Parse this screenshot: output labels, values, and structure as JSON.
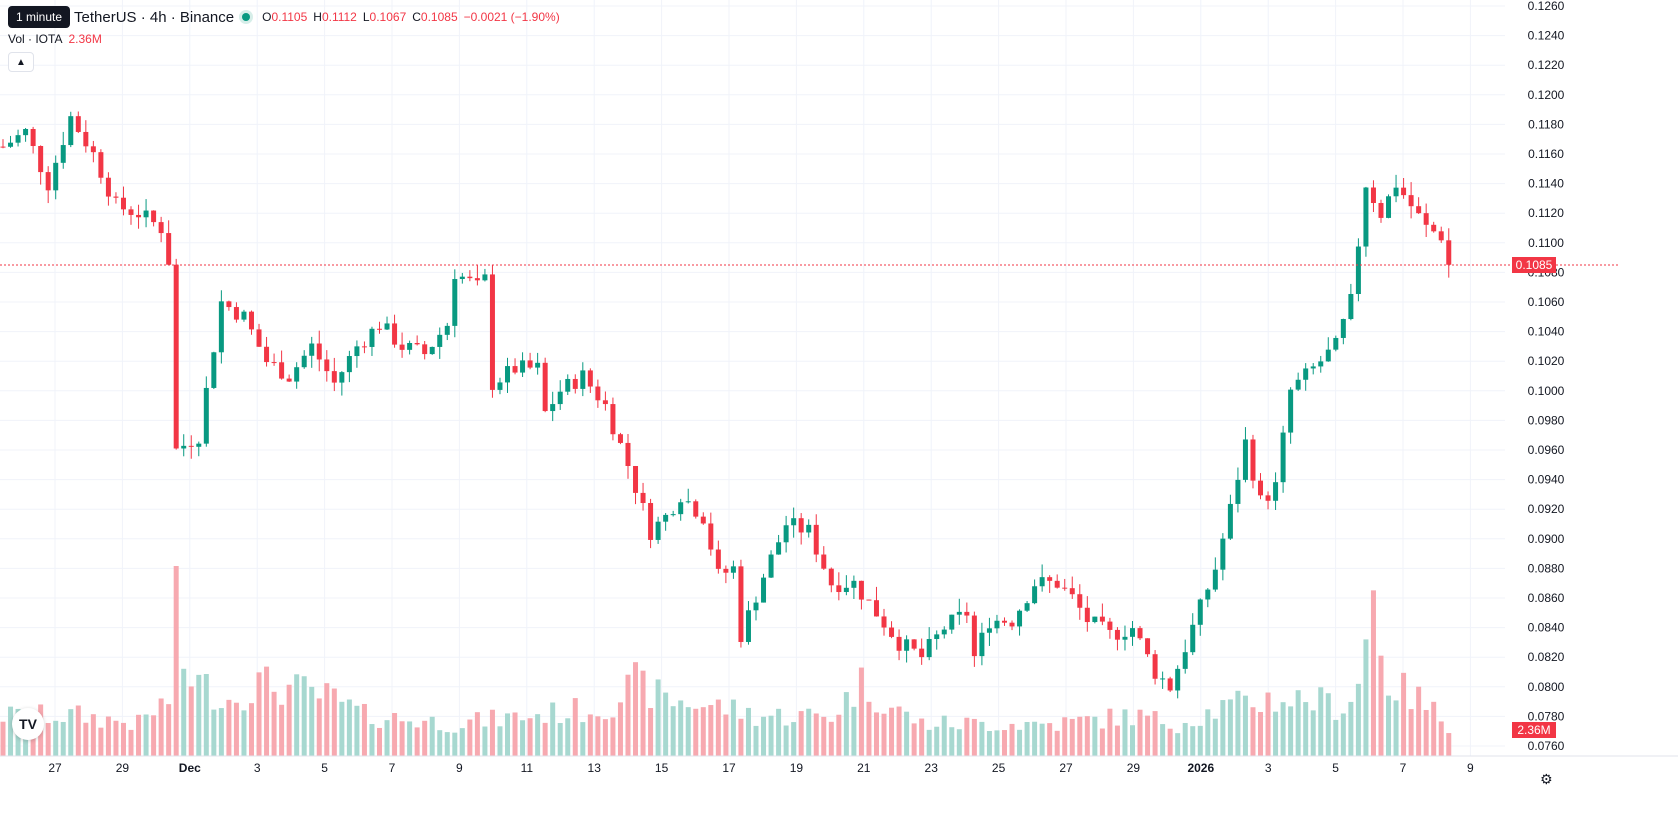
{
  "header": {
    "interval_tooltip": "1 minute",
    "symbol": "TetherUS · 4h · Binance",
    "ohlc": [
      {
        "k": "O",
        "v": "0.1105"
      },
      {
        "k": "H",
        "v": "0.1112"
      },
      {
        "k": "L",
        "v": "0.1067"
      },
      {
        "k": "C",
        "v": "0.1085"
      }
    ],
    "change": "−0.0021 (−1.90%)"
  },
  "volume_legend": {
    "label": "Vol · IOTA",
    "value": "2.36M"
  },
  "current_price_label": "0.1085",
  "current_volume_label": "2.36M",
  "colors": {
    "up": "#089981",
    "down": "#f23645",
    "vol_up": "#a7d8d0",
    "vol_down": "#f7a9b0",
    "grid": "#f0f3fa"
  },
  "chart_data": {
    "type": "candlestick",
    "y_ticks": [
      "0.1260",
      "0.1240",
      "0.1220",
      "0.1200",
      "0.1180",
      "0.1160",
      "0.1140",
      "0.1120",
      "0.1100",
      "0.1080",
      "0.1060",
      "0.1040",
      "0.1020",
      "0.1000",
      "0.0980",
      "0.0960",
      "0.0940",
      "0.0920",
      "0.0900",
      "0.0880",
      "0.0860",
      "0.0840",
      "0.0820",
      "0.0800",
      "0.0780",
      "0.0760"
    ],
    "ylim": [
      0.0754,
      0.1266
    ],
    "x_ticks": [
      "27",
      "29",
      "Dec",
      "3",
      "5",
      "7",
      "9",
      "11",
      "13",
      "15",
      "17",
      "19",
      "21",
      "23",
      "25",
      "27",
      "29",
      "2026",
      "3",
      "5",
      "7",
      "9"
    ],
    "close_path": [
      [
        0,
        0.1165
      ],
      [
        3,
        0.1175
      ],
      [
        6,
        0.114
      ],
      [
        9,
        0.1185
      ],
      [
        12,
        0.116
      ],
      [
        15,
        0.1125
      ],
      [
        18,
        0.112
      ],
      [
        21,
        0.111
      ],
      [
        22,
        0.1088
      ],
      [
        23,
        0.096
      ],
      [
        26,
        0.097
      ],
      [
        29,
        0.106
      ],
      [
        32,
        0.105
      ],
      [
        35,
        0.102
      ],
      [
        38,
        0.101
      ],
      [
        41,
        0.103
      ],
      [
        44,
        0.1005
      ],
      [
        47,
        0.103
      ],
      [
        50,
        0.1045
      ],
      [
        53,
        0.103
      ],
      [
        56,
        0.1025
      ],
      [
        59,
        0.1045
      ],
      [
        60,
        0.108
      ],
      [
        63,
        0.107
      ],
      [
        64,
        0.1075
      ],
      [
        65,
        0.1005
      ],
      [
        68,
        0.1015
      ],
      [
        71,
        0.1015
      ],
      [
        72,
        0.0985
      ],
      [
        74,
        0.1
      ],
      [
        77,
        0.101
      ],
      [
        80,
        0.099
      ],
      [
        83,
        0.095
      ],
      [
        86,
        0.0905
      ],
      [
        88,
        0.0915
      ],
      [
        90,
        0.093
      ],
      [
        93,
        0.0915
      ],
      [
        95,
        0.0875
      ],
      [
        97,
        0.088
      ],
      [
        98,
        0.0835
      ],
      [
        101,
        0.0875
      ],
      [
        104,
        0.091
      ],
      [
        107,
        0.0905
      ],
      [
        110,
        0.087
      ],
      [
        113,
        0.087
      ],
      [
        116,
        0.085
      ],
      [
        119,
        0.083
      ],
      [
        122,
        0.082
      ],
      [
        125,
        0.084
      ],
      [
        128,
        0.085
      ],
      [
        129,
        0.082
      ],
      [
        131,
        0.0845
      ],
      [
        134,
        0.0845
      ],
      [
        137,
        0.087
      ],
      [
        140,
        0.087
      ],
      [
        142,
        0.086
      ],
      [
        144,
        0.0845
      ],
      [
        147,
        0.0835
      ],
      [
        150,
        0.084
      ],
      [
        153,
        0.081
      ],
      [
        155,
        0.08
      ],
      [
        158,
        0.084
      ],
      [
        161,
        0.088
      ],
      [
        163,
        0.092
      ],
      [
        165,
        0.0965
      ],
      [
        167,
        0.0925
      ],
      [
        169,
        0.0935
      ],
      [
        171,
        0.1
      ],
      [
        174,
        0.1015
      ],
      [
        177,
        0.103
      ],
      [
        179,
        0.106
      ],
      [
        181,
        0.114
      ],
      [
        183,
        0.112
      ],
      [
        185,
        0.114
      ],
      [
        187,
        0.1125
      ],
      [
        189,
        0.111
      ],
      [
        191,
        0.1105
      ],
      [
        192,
        0.1085
      ]
    ],
    "volume_path": [
      [
        0,
        0.25
      ],
      [
        10,
        0.25
      ],
      [
        18,
        0.2
      ],
      [
        22,
        0.35
      ],
      [
        23,
        1.0
      ],
      [
        24,
        0.55
      ],
      [
        26,
        0.45
      ],
      [
        30,
        0.35
      ],
      [
        34,
        0.45
      ],
      [
        40,
        0.4
      ],
      [
        44,
        0.35
      ],
      [
        48,
        0.25
      ],
      [
        60,
        0.2
      ],
      [
        70,
        0.25
      ],
      [
        80,
        0.3
      ],
      [
        84,
        0.45
      ],
      [
        88,
        0.35
      ],
      [
        96,
        0.3
      ],
      [
        100,
        0.25
      ],
      [
        110,
        0.25
      ],
      [
        114,
        0.45
      ],
      [
        118,
        0.3
      ],
      [
        122,
        0.2
      ],
      [
        130,
        0.2
      ],
      [
        140,
        0.2
      ],
      [
        150,
        0.25
      ],
      [
        156,
        0.2
      ],
      [
        162,
        0.3
      ],
      [
        168,
        0.35
      ],
      [
        174,
        0.35
      ],
      [
        178,
        0.3
      ],
      [
        180,
        0.45
      ],
      [
        182,
        1.0
      ],
      [
        184,
        0.45
      ],
      [
        188,
        0.35
      ],
      [
        192,
        0.2
      ]
    ]
  }
}
